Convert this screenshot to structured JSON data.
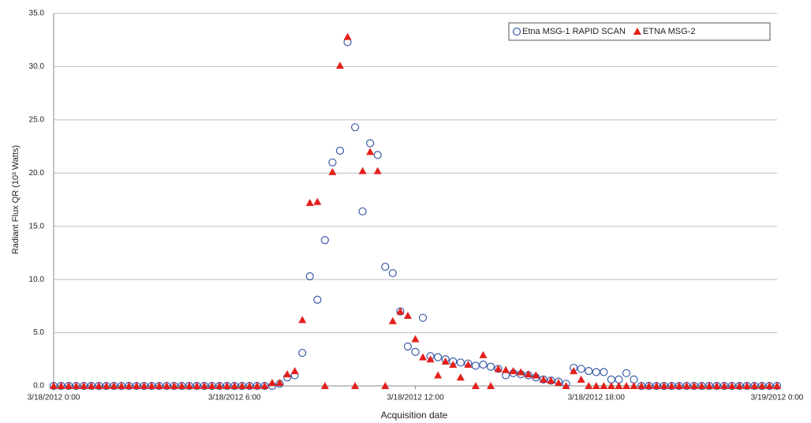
{
  "chart_data": {
    "type": "scatter",
    "ylabel": "Radiant Flux QR (10³ Watts)",
    "xlabel": "Acquisition date",
    "xlim": [
      "3/18/2012 0:00",
      "3/19/2012 0:00"
    ],
    "xticks": [
      "3/18/2012 0:00",
      "3/18/2012 6:00",
      "3/18/2012 12:00",
      "3/18/2012 18:00",
      "3/19/2012 0:00"
    ],
    "ylim": [
      0,
      35
    ],
    "yticks": [
      {
        "value": 0,
        "label": "0.0"
      },
      {
        "value": 5,
        "label": "5.0"
      },
      {
        "value": 10,
        "label": "10.0"
      },
      {
        "value": 15,
        "label": "15.0"
      },
      {
        "value": 20,
        "label": "20.0"
      },
      {
        "value": 25,
        "label": "25.0"
      },
      {
        "value": 30,
        "label": "30.0"
      },
      {
        "value": 35,
        "label": "35.0"
      }
    ],
    "grid": true,
    "legend": "upper right",
    "x": [
      "3/18/2012 0:00",
      "3/18/2012 0:15",
      "3/18/2012 0:30",
      "3/18/2012 0:45",
      "3/18/2012 1:00",
      "3/18/2012 1:15",
      "3/18/2012 1:30",
      "3/18/2012 1:45",
      "3/18/2012 2:00",
      "3/18/2012 2:15",
      "3/18/2012 2:30",
      "3/18/2012 2:45",
      "3/18/2012 3:00",
      "3/18/2012 3:15",
      "3/18/2012 3:30",
      "3/18/2012 3:45",
      "3/18/2012 4:00",
      "3/18/2012 4:15",
      "3/18/2012 4:30",
      "3/18/2012 4:45",
      "3/18/2012 5:00",
      "3/18/2012 5:15",
      "3/18/2012 5:30",
      "3/18/2012 5:45",
      "3/18/2012 6:00",
      "3/18/2012 6:15",
      "3/18/2012 6:30",
      "3/18/2012 6:45",
      "3/18/2012 7:00",
      "3/18/2012 7:15",
      "3/18/2012 7:30",
      "3/18/2012 7:45",
      "3/18/2012 8:00",
      "3/18/2012 8:15",
      "3/18/2012 8:30",
      "3/18/2012 8:45",
      "3/18/2012 9:00",
      "3/18/2012 9:15",
      "3/18/2012 9:30",
      "3/18/2012 9:45",
      "3/18/2012 10:00",
      "3/18/2012 10:15",
      "3/18/2012 10:30",
      "3/18/2012 10:45",
      "3/18/2012 11:00",
      "3/18/2012 11:15",
      "3/18/2012 11:30",
      "3/18/2012 11:45",
      "3/18/2012 12:00",
      "3/18/2012 12:15",
      "3/18/2012 12:30",
      "3/18/2012 12:45",
      "3/18/2012 13:00",
      "3/18/2012 13:15",
      "3/18/2012 13:30",
      "3/18/2012 13:45",
      "3/18/2012 14:00",
      "3/18/2012 14:15",
      "3/18/2012 14:30",
      "3/18/2012 14:45",
      "3/18/2012 15:00",
      "3/18/2012 15:15",
      "3/18/2012 15:30",
      "3/18/2012 15:45",
      "3/18/2012 16:00",
      "3/18/2012 16:15",
      "3/18/2012 16:30",
      "3/18/2012 16:45",
      "3/18/2012 17:00",
      "3/18/2012 17:15",
      "3/18/2012 17:30",
      "3/18/2012 17:45",
      "3/18/2012 18:00",
      "3/18/2012 18:15",
      "3/18/2012 18:30",
      "3/18/2012 18:45",
      "3/18/2012 19:00",
      "3/18/2012 19:15",
      "3/18/2012 19:30",
      "3/18/2012 19:45",
      "3/18/2012 20:00",
      "3/18/2012 20:15",
      "3/18/2012 20:30",
      "3/18/2012 20:45",
      "3/18/2012 21:00",
      "3/18/2012 21:15",
      "3/18/2012 21:30",
      "3/18/2012 21:45",
      "3/18/2012 22:00",
      "3/18/2012 22:15",
      "3/18/2012 22:30",
      "3/18/2012 22:45",
      "3/18/2012 23:00",
      "3/18/2012 23:15",
      "3/18/2012 23:30",
      "3/18/2012 23:45",
      "3/19/2012 0:00"
    ],
    "series": [
      {
        "name": "Etna MSG-1 RAPID SCAN",
        "color": "#3a5ba8",
        "marker": "circle",
        "values": [
          0,
          0,
          0,
          0,
          0,
          0,
          0,
          0,
          0,
          0,
          0,
          0,
          0,
          0,
          0,
          0,
          0,
          0,
          0,
          0,
          0,
          0,
          0,
          0,
          0,
          0,
          0,
          0,
          0,
          0,
          0.2,
          0.8,
          1.0,
          3.1,
          10.3,
          8.1,
          13.7,
          21.0,
          22.1,
          32.3,
          24.3,
          16.4,
          22.8,
          21.7,
          11.2,
          10.6,
          7.0,
          3.7,
          3.2,
          6.4,
          2.8,
          2.7,
          2.5,
          2.3,
          2.2,
          2.1,
          1.9,
          2.0,
          1.8,
          1.6,
          1.0,
          1.2,
          1.1,
          1.0,
          0.8,
          0.6,
          0.5,
          0.4,
          0.2,
          1.7,
          1.6,
          1.4,
          1.3,
          1.3,
          0.6,
          0.6,
          1.2,
          0.6,
          0,
          0,
          0,
          0,
          0,
          0,
          0,
          0,
          0,
          0,
          0,
          0,
          0,
          0,
          0,
          0,
          0,
          0,
          0
        ]
      },
      {
        "name": "ETNA MSG-2",
        "color": "#e3201b",
        "marker": "triangle",
        "values": [
          0,
          0,
          0,
          0,
          0,
          0,
          0,
          0,
          0,
          0,
          0,
          0,
          0,
          0,
          0,
          0,
          0,
          0,
          0,
          0,
          0,
          0,
          0,
          0,
          0,
          0,
          0,
          0,
          0,
          0.3,
          0.3,
          1.1,
          1.4,
          6.2,
          17.2,
          17.3,
          0,
          20.1,
          30.1,
          32.8,
          0,
          20.2,
          22.0,
          20.2,
          0,
          6.1,
          7.0,
          6.6,
          4.4,
          2.7,
          2.5,
          1.0,
          2.3,
          2.0,
          0.8,
          2.0,
          0,
          2.9,
          0,
          1.6,
          1.5,
          1.4,
          1.3,
          1.1,
          1.0,
          0.6,
          0.5,
          0.3,
          0,
          1.4,
          0.6,
          0,
          0,
          0,
          0,
          0,
          0,
          0,
          0,
          0,
          0,
          0,
          0,
          0,
          0,
          0,
          0,
          0,
          0,
          0,
          0,
          0,
          0,
          0,
          0,
          0,
          0
        ]
      }
    ]
  }
}
